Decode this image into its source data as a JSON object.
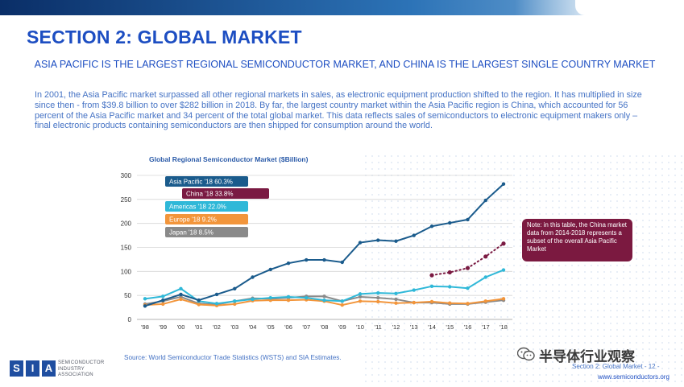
{
  "title": "SECTION 2: GLOBAL MARKET",
  "subtitle": "ASIA PACIFIC IS THE LARGEST REGIONAL SEMICONDUCTOR MARKET, AND CHINA IS THE LARGEST SINGLE COUNTRY MARKET",
  "paragraph": "In 2001, the Asia Pacific market surpassed all other regional markets in sales, as electronic equipment production shifted to the region.  It has multiplied in size since then - from $39.8 billion to over $282 billion in 2018.  By far, the largest country market within the Asia Pacific region is China, which accounted for 56 percent of the Asia Pacific market and 34 percent of the total global market.  This data reflects sales of semiconductors to electronic equipment makers only – final electronic products containing semiconductors are then shipped for consumption around the world.",
  "chart_data": {
    "type": "line",
    "title": "Global Regional Semiconductor Market ($Billion)",
    "x": [
      "'98",
      "'99",
      "'00",
      "'01",
      "'02",
      "'03",
      "'04",
      "'05",
      "'06",
      "'07",
      "'08",
      "'09",
      "'10",
      "'11",
      "'12",
      "'13",
      "'14",
      "'15",
      "'16",
      "'17",
      "'18"
    ],
    "ylim": [
      0,
      300
    ],
    "yticks": [
      "0",
      "50",
      "100",
      "150",
      "200",
      "250",
      "300"
    ],
    "grid": true,
    "series": [
      {
        "name": "Asia Pacific '18  60.3%",
        "color": "#1a5b8c",
        "dashed": false,
        "values": [
          28,
          40,
          52,
          40,
          52,
          64,
          88,
          104,
          117,
          124,
          124,
          119,
          160,
          165,
          163,
          175,
          194,
          201,
          208,
          248,
          282
        ]
      },
      {
        "name": "China '18  33.8%",
        "color": "#7a1a42",
        "dashed": true,
        "values": [
          null,
          null,
          null,
          null,
          null,
          null,
          null,
          null,
          null,
          null,
          null,
          null,
          null,
          null,
          null,
          null,
          92,
          98,
          107,
          131,
          158
        ]
      },
      {
        "name": "Americas '18  22.0%",
        "color": "#2fb8d8",
        "dashed": false,
        "values": [
          43,
          48,
          64,
          38,
          33,
          38,
          42,
          45,
          47,
          45,
          40,
          38,
          53,
          55,
          54,
          61,
          69,
          68,
          65,
          88,
          103
        ]
      },
      {
        "name": "Europe '18  9.2%",
        "color": "#f2953b",
        "dashed": false,
        "values": [
          30,
          32,
          42,
          31,
          29,
          32,
          39,
          40,
          40,
          41,
          38,
          30,
          38,
          37,
          34,
          35,
          37,
          34,
          33,
          38,
          43
        ]
      },
      {
        "name": "Japan '18  8.5%",
        "color": "#8a8a8a",
        "dashed": false,
        "values": [
          32,
          38,
          47,
          33,
          31,
          38,
          44,
          43,
          45,
          48,
          48,
          38,
          47,
          45,
          42,
          35,
          35,
          32,
          32,
          36,
          40
        ]
      }
    ]
  },
  "note": "Note: in this table, the China market data from 2014-2018 represents a subset of the overall Asia Pacific Market",
  "source": "Source: World Semiconductor Trade Statistics (WSTS) and SIA Estimates.",
  "logo": {
    "letters": [
      "S",
      "I",
      "A"
    ],
    "line1": "SEMICONDUCTOR",
    "line2": "INDUSTRY",
    "line3": "ASSOCIATION"
  },
  "footer": {
    "section": "Section 2: Global Market - 12 -",
    "url": "www.semiconductors.org"
  },
  "watermark": "半导体行业观察"
}
